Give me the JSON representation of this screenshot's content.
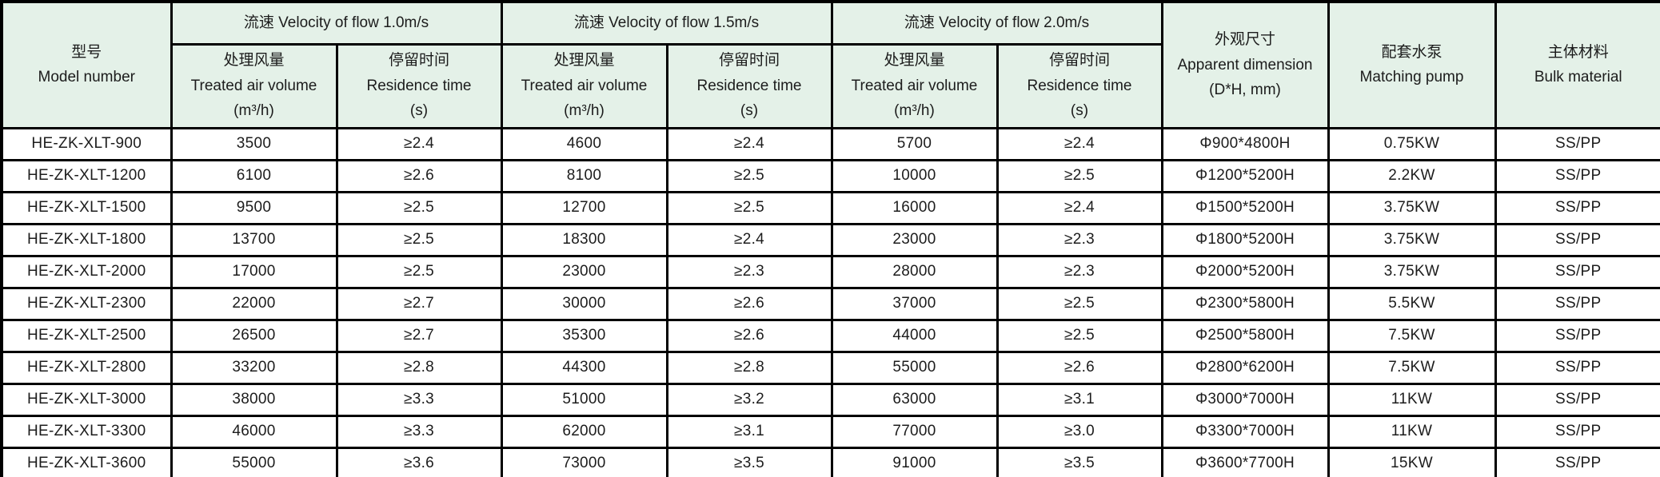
{
  "table": {
    "title": "HE-ZK-XLT series specification table",
    "columns": [
      "model",
      "v10_volume",
      "v10_time",
      "v15_volume",
      "v15_time",
      "v20_volume",
      "v20_time",
      "dimension",
      "pump",
      "material"
    ],
    "header": {
      "model": "型号\nModel number",
      "groups": [
        {
          "title": "流速 Velocity of flow 1.0m/s",
          "sub": [
            "处理风量\nTreated air volume\n(m³/h)",
            "停留时间\nResidence time\n(s)"
          ]
        },
        {
          "title": "流速 Velocity of flow 1.5m/s",
          "sub": [
            "处理风量\nTreated air volume\n(m³/h)",
            "停留时间\nResidence time\n(s)"
          ]
        },
        {
          "title": "流速 Velocity of flow 2.0m/s",
          "sub": [
            "处理风量\nTreated air volume\n(m³/h)",
            "停留时间\nResidence time\n(s)"
          ]
        }
      ],
      "dimension": "外观尺寸\nApparent dimension\n(D*H, mm)",
      "pump": "配套水泵\nMatching pump",
      "material": "主体材料\nBulk material"
    },
    "rows": [
      {
        "model": "HE-ZK-XLT-900",
        "v10_volume": "3500",
        "v10_time": "≥2.4",
        "v15_volume": "4600",
        "v15_time": "≥2.4",
        "v20_volume": "5700",
        "v20_time": "≥2.4",
        "dimension": "Φ900*4800H",
        "pump": "0.75KW",
        "material": "SS/PP"
      },
      {
        "model": "HE-ZK-XLT-1200",
        "v10_volume": "6100",
        "v10_time": "≥2.6",
        "v15_volume": "8100",
        "v15_time": "≥2.5",
        "v20_volume": "10000",
        "v20_time": "≥2.5",
        "dimension": "Φ1200*5200H",
        "pump": "2.2KW",
        "material": "SS/PP"
      },
      {
        "model": "HE-ZK-XLT-1500",
        "v10_volume": "9500",
        "v10_time": "≥2.5",
        "v15_volume": "12700",
        "v15_time": "≥2.5",
        "v20_volume": "16000",
        "v20_time": "≥2.4",
        "dimension": "Φ1500*5200H",
        "pump": "3.75KW",
        "material": "SS/PP"
      },
      {
        "model": "HE-ZK-XLT-1800",
        "v10_volume": "13700",
        "v10_time": "≥2.5",
        "v15_volume": "18300",
        "v15_time": "≥2.4",
        "v20_volume": "23000",
        "v20_time": "≥2.3",
        "dimension": "Φ1800*5200H",
        "pump": "3.75KW",
        "material": "SS/PP"
      },
      {
        "model": "HE-ZK-XLT-2000",
        "v10_volume": "17000",
        "v10_time": "≥2.5",
        "v15_volume": "23000",
        "v15_time": "≥2.3",
        "v20_volume": "28000",
        "v20_time": "≥2.3",
        "dimension": "Φ2000*5200H",
        "pump": "3.75KW",
        "material": "SS/PP"
      },
      {
        "model": "HE-ZK-XLT-2300",
        "v10_volume": "22000",
        "v10_time": "≥2.7",
        "v15_volume": "30000",
        "v15_time": "≥2.6",
        "v20_volume": "37000",
        "v20_time": "≥2.5",
        "dimension": "Φ2300*5800H",
        "pump": "5.5KW",
        "material": "SS/PP"
      },
      {
        "model": "HE-ZK-XLT-2500",
        "v10_volume": "26500",
        "v10_time": "≥2.7",
        "v15_volume": "35300",
        "v15_time": "≥2.6",
        "v20_volume": "44000",
        "v20_time": "≥2.5",
        "dimension": "Φ2500*5800H",
        "pump": "7.5KW",
        "material": "SS/PP"
      },
      {
        "model": "HE-ZK-XLT-2800",
        "v10_volume": "33200",
        "v10_time": "≥2.8",
        "v15_volume": "44300",
        "v15_time": "≥2.8",
        "v20_volume": "55000",
        "v20_time": "≥2.6",
        "dimension": "Φ2800*6200H",
        "pump": "7.5KW",
        "material": "SS/PP"
      },
      {
        "model": "HE-ZK-XLT-3000",
        "v10_volume": "38000",
        "v10_time": "≥3.3",
        "v15_volume": "51000",
        "v15_time": "≥3.2",
        "v20_volume": "63000",
        "v20_time": "≥3.1",
        "dimension": "Φ3000*7000H",
        "pump": "11KW",
        "material": "SS/PP"
      },
      {
        "model": "HE-ZK-XLT-3300",
        "v10_volume": "46000",
        "v10_time": "≥3.3",
        "v15_volume": "62000",
        "v15_time": "≥3.1",
        "v20_volume": "77000",
        "v20_time": "≥3.0",
        "dimension": "Φ3300*7000H",
        "pump": "11KW",
        "material": "SS/PP"
      },
      {
        "model": "HE-ZK-XLT-3600",
        "v10_volume": "55000",
        "v10_time": "≥3.6",
        "v15_volume": "73000",
        "v15_time": "≥3.5",
        "v20_volume": "91000",
        "v20_time": "≥3.5",
        "dimension": "Φ3600*7700H",
        "pump": "15KW",
        "material": "SS/PP"
      }
    ],
    "colors": {
      "header_bg": "#e4f1e8",
      "border": "#000000",
      "text": "#1c1c1c",
      "row_bg": "#ffffff"
    }
  }
}
